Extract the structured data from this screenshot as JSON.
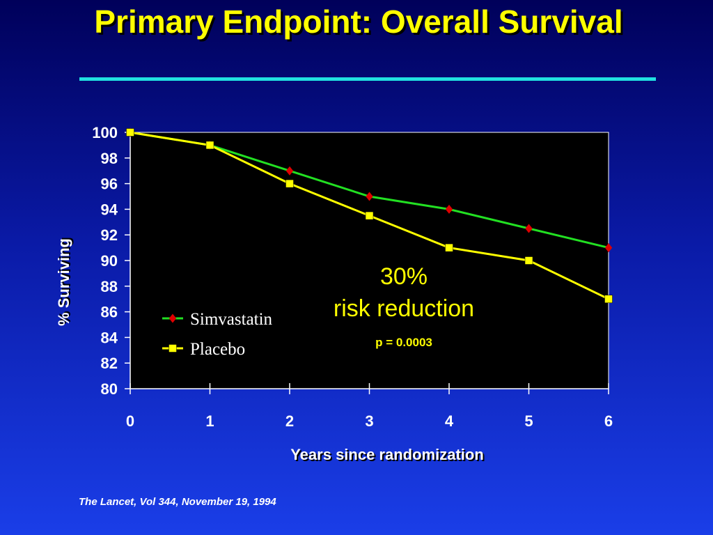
{
  "slide": {
    "title": "Primary Endpoint: Overall Survival",
    "source": "The Lancet, Vol 344, November 19, 1994"
  },
  "annotation": {
    "headline": "30%",
    "subline": "risk reduction",
    "pvalue": "p = 0.0003"
  },
  "chart_data": {
    "type": "line",
    "xlabel": "Years since randomization",
    "ylabel": "% Surviving",
    "x": [
      0,
      1,
      2,
      3,
      4,
      5,
      6
    ],
    "xlim": [
      0,
      6
    ],
    "ylim": [
      80,
      100
    ],
    "yticks": [
      100,
      98,
      96,
      94,
      92,
      90,
      88,
      86,
      84,
      82,
      80
    ],
    "xticks": [
      0,
      1,
      2,
      3,
      4,
      5,
      6
    ],
    "legend_position": "middle-left",
    "series": [
      {
        "name": "Simvastatin",
        "values": [
          100,
          99,
          97,
          95,
          94,
          92.5,
          91
        ],
        "color": "#22e022",
        "marker": "diamond",
        "marker_color": "#e00000"
      },
      {
        "name": "Placebo",
        "values": [
          100,
          99,
          96,
          93.5,
          91,
          90,
          87
        ],
        "color": "#ffff00",
        "marker": "square",
        "marker_color": "#ffff00"
      }
    ],
    "plot_background": "#000000",
    "grid": false
  },
  "colors": {
    "title": "#ffff00",
    "title_rule": "#21e0e0",
    "text": "#ffffff"
  }
}
